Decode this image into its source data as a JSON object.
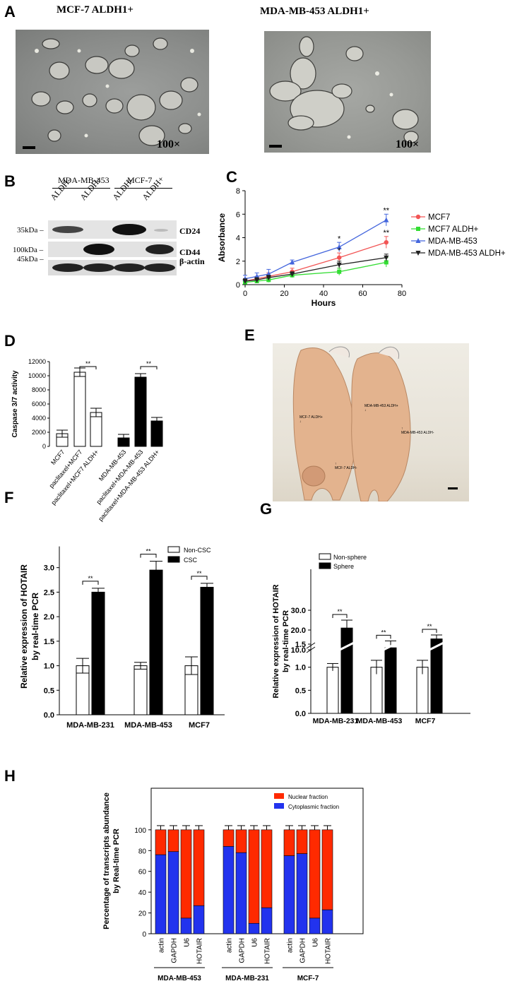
{
  "panels": {
    "A": {
      "letter": "A",
      "left_title": "MCF-7 ALDH1+",
      "right_title": "MDA-MB-453 ALDH1+",
      "magnification": "100×"
    },
    "B": {
      "letter": "B",
      "groups": [
        "MDA-MB-453",
        "MCF-7"
      ],
      "lanes": [
        "ALDH-",
        "ALDH+",
        "ALDH-",
        "ALDH+"
      ],
      "rows": [
        {
          "marker": "35kDa",
          "protein": "CD24"
        },
        {
          "marker": "100kDa",
          "protein": "CD44"
        },
        {
          "marker": "45kDa",
          "protein": "β-actin"
        }
      ]
    },
    "D": {
      "letter": "D"
    },
    "E": {
      "letter": "E",
      "labels": [
        "MCF-7 ALDH+",
        "MCF-7 ALDH-",
        "MDA-MB-453 ALDH+",
        "MDA-MB-453 ALDH-"
      ]
    },
    "F": {
      "letter": "F"
    },
    "G": {
      "letter": "G"
    },
    "H": {
      "letter": "H"
    }
  },
  "chart_data": [
    {
      "panel": "C",
      "type": "line",
      "xlabel": "Hours",
      "ylabel": "Absorbance",
      "xlim": [
        0,
        80
      ],
      "ylim": [
        0,
        8
      ],
      "xticks": [
        0,
        20,
        40,
        60,
        80
      ],
      "yticks": [
        0,
        2,
        4,
        6,
        8
      ],
      "legend_position": "right",
      "x": [
        0,
        6,
        12,
        24,
        48,
        72
      ],
      "series": [
        {
          "name": "MCF7",
          "marker": "circle",
          "color": "#f25555",
          "values": [
            0.3,
            0.5,
            0.7,
            1.1,
            2.3,
            3.6
          ],
          "err": [
            0.2,
            0.2,
            0.3,
            0.3,
            0.4,
            0.5
          ]
        },
        {
          "name": "MCF7 ALDH+",
          "marker": "square",
          "color": "#33dd33",
          "values": [
            0.2,
            0.3,
            0.4,
            0.8,
            1.1,
            1.9
          ],
          "err": [
            0.1,
            0.1,
            0.2,
            0.2,
            0.3,
            0.4
          ]
        },
        {
          "name": "MDA-MB-453",
          "marker": "triangle-up",
          "color": "#4466dd",
          "values": [
            0.5,
            0.7,
            0.9,
            1.9,
            3.2,
            5.5
          ],
          "err": [
            0.3,
            0.3,
            0.4,
            0.2,
            0.4,
            0.5
          ]
        },
        {
          "name": "MDA-MB-453 ALDH+",
          "marker": "triangle-down",
          "color": "#222222",
          "values": [
            0.3,
            0.4,
            0.6,
            0.9,
            1.7,
            2.3
          ],
          "err": [
            0.2,
            0.2,
            0.2,
            0.2,
            0.3,
            0.3
          ]
        }
      ],
      "annotations": [
        {
          "x": 48,
          "y": 3.7,
          "text": "*"
        },
        {
          "x": 48,
          "y": 2.7,
          "text": "*"
        },
        {
          "x": 72,
          "y": 6.1,
          "text": "**"
        },
        {
          "x": 72,
          "y": 4.2,
          "text": "**"
        }
      ]
    },
    {
      "panel": "D",
      "type": "bar",
      "ylabel": "Caspase 3/7 activity",
      "ylim": [
        0,
        12000
      ],
      "yticks": [
        0,
        2000,
        4000,
        6000,
        8000,
        10000,
        12000
      ],
      "categories": [
        "MCF7",
        "paclitaxel+MCF7",
        "paclitaxel+MCF7 ALDH+",
        "MDA-MB-453",
        "paclitaxel+MDA-MB-453",
        "paclitaxel+MDA-MB-453 ALDH+"
      ],
      "values": [
        1800,
        10500,
        4800,
        1200,
        9800,
        3600
      ],
      "err": [
        500,
        600,
        600,
        500,
        500,
        500
      ],
      "fills": [
        "#ffffff",
        "#ffffff",
        "#ffffff",
        "#000000",
        "#000000",
        "#000000"
      ],
      "annotations": [
        {
          "between": [
            1,
            2
          ],
          "text": "**"
        },
        {
          "between": [
            4,
            5
          ],
          "text": "**"
        }
      ]
    },
    {
      "panel": "F",
      "type": "bar",
      "ylabel": "Relative expression of HOTAIR by real-time PCR",
      "ylim": [
        0,
        3.0
      ],
      "yticks": [
        0.0,
        0.5,
        1.0,
        1.5,
        2.0,
        2.5,
        3.0
      ],
      "categories": [
        "MDA-MB-231",
        "MDA-MB-453",
        "MCF7"
      ],
      "legend_position": "top-right",
      "series": [
        {
          "name": "Non-CSC",
          "fill": "#ffffff",
          "values": [
            1.0,
            1.0,
            1.0
          ],
          "err": [
            0.15,
            0.07,
            0.18
          ]
        },
        {
          "name": "CSC",
          "fill": "#000000",
          "values": [
            2.5,
            2.95,
            2.6
          ],
          "err": [
            0.08,
            0.18,
            0.08
          ]
        }
      ],
      "annotations": [
        "**",
        "**",
        "**"
      ]
    },
    {
      "panel": "G",
      "type": "bar",
      "ylabel": "Relative expression of HOTAIR by real-time PCR",
      "ytick_labels_lower": [
        "0.0",
        "0.5",
        "1.0",
        "1.5"
      ],
      "ytick_labels_upper": [
        "10.0",
        "20.0",
        "30.0"
      ],
      "categories": [
        "MDA-MB-231",
        "MDA-MB-453",
        "MCF7"
      ],
      "legend_position": "top-left",
      "series": [
        {
          "name": "Non-sphere",
          "fill": "#ffffff",
          "values": [
            1.0,
            1.0,
            1.0
          ],
          "err": [
            0.08,
            0.15,
            0.15
          ]
        },
        {
          "name": "Sphere",
          "fill": "#000000",
          "values": [
            21,
            11,
            15.5
          ],
          "err": [
            4,
            3.5,
            2
          ]
        }
      ],
      "annotations": [
        "**",
        "**",
        "**"
      ]
    },
    {
      "panel": "H",
      "type": "bar",
      "stacked": true,
      "ylabel": "Percentage of transcripts abundance by Real-time PCR",
      "ylim": [
        0,
        140
      ],
      "yticks": [
        0,
        20,
        40,
        60,
        80,
        100
      ],
      "legend_position": "top-right",
      "groups": [
        "MDA-MB-453",
        "MDA-MB-231",
        "MCF-7"
      ],
      "categories": [
        "actin",
        "GAPDH",
        "U6",
        "HOTAIR"
      ],
      "series": [
        {
          "name": "Nuclear fraction",
          "color": "#ff2a00"
        },
        {
          "name": "Cytoplasmic fraction",
          "color": "#2233ee"
        }
      ],
      "cytoplasmic_values": [
        [
          76,
          79,
          15,
          27
        ],
        [
          84,
          78,
          10,
          25
        ],
        [
          75,
          77,
          15,
          23
        ]
      ]
    }
  ]
}
